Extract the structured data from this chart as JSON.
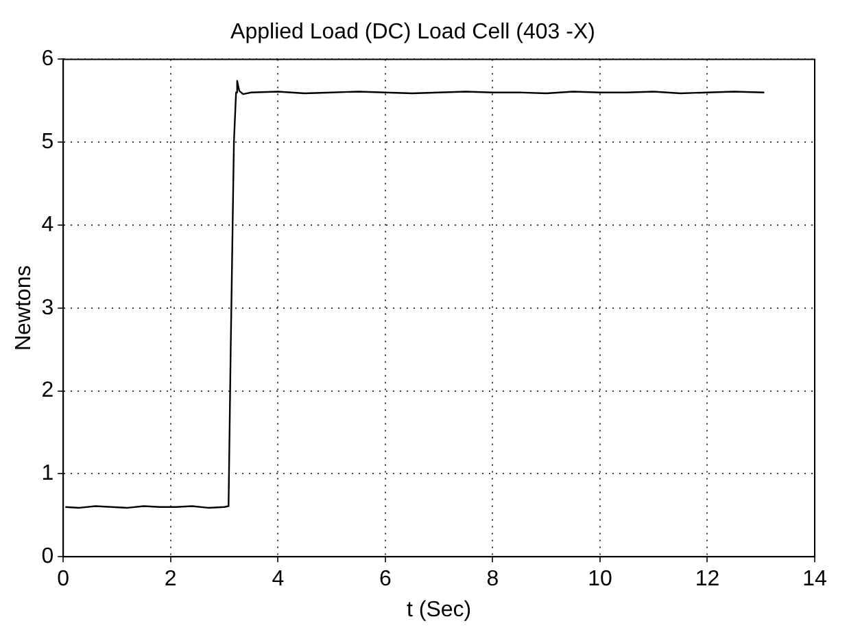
{
  "chart_data": {
    "type": "line",
    "title": "Applied Load (DC) Load Cell (403 -X)",
    "xlabel": "t (Sec)",
    "ylabel": "Newtons",
    "x": [
      0.04,
      0.3,
      0.6,
      0.9,
      1.2,
      1.5,
      1.8,
      2.1,
      2.4,
      2.7,
      3.0,
      3.08,
      3.12,
      3.18,
      3.22,
      3.24,
      3.28,
      3.35,
      3.5,
      4,
      4.5,
      5,
      5.5,
      6,
      6.5,
      7,
      7.5,
      8,
      8.5,
      9,
      9.5,
      10,
      10.5,
      11,
      11.5,
      12,
      12.5,
      13.06
    ],
    "series": [
      {
        "color": "#000000",
        "values": [
          0.6,
          0.59,
          0.61,
          0.6,
          0.59,
          0.61,
          0.6,
          0.6,
          0.61,
          0.59,
          0.6,
          0.61,
          2.5,
          5.0,
          5.6,
          5.74,
          5.62,
          5.58,
          5.6,
          5.61,
          5.59,
          5.6,
          5.61,
          5.6,
          5.59,
          5.6,
          5.61,
          5.6,
          5.6,
          5.59,
          5.61,
          5.6,
          5.6,
          5.61,
          5.59,
          5.6,
          5.61,
          5.6
        ]
      }
    ],
    "xlim": [
      0,
      14
    ],
    "xticks": [
      0,
      2,
      4,
      6,
      8,
      10,
      12,
      14
    ],
    "ylim": [
      0,
      6
    ],
    "yticks": [
      0,
      1,
      2,
      3,
      4,
      5,
      6
    ],
    "grid": true,
    "legend": false,
    "marker": "none",
    "line_style": "solid"
  }
}
